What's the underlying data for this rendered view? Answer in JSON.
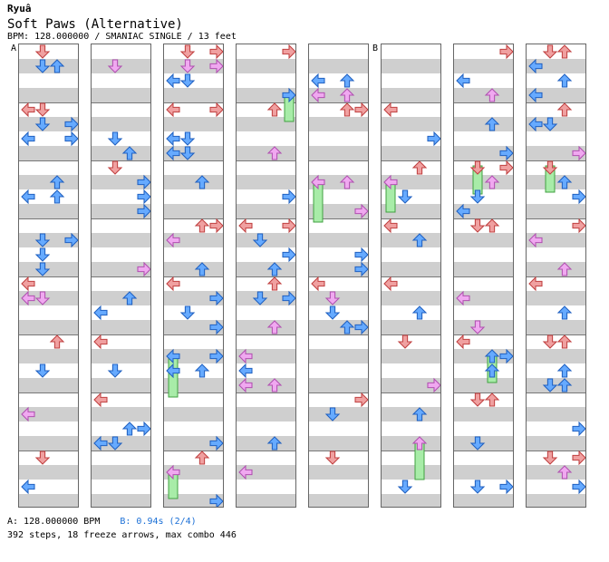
{
  "header": {
    "artist": "Ryuâ",
    "title": "Soft Paws (Alternative)",
    "meta": "BPM: 128.000000 / SMANIAC SINGLE / 13 feet"
  },
  "markers": {
    "a": "A",
    "b": "B"
  },
  "footer": {
    "bpm_a": "A: 128.000000 BPM",
    "bpm_b": "B: 0.94s (2/4)",
    "stats": "392 steps, 18 freeze arrows, max combo 446"
  },
  "colors": {
    "red": "#f0a0a0",
    "blue": "#66aaff",
    "pink": "#f0a8f0",
    "freeze": "#a8eca8"
  },
  "icons": [
    "left-arrow-icon",
    "down-arrow-icon",
    "up-arrow-icon",
    "right-arrow-icon",
    "freeze-arrow-icon"
  ]
}
